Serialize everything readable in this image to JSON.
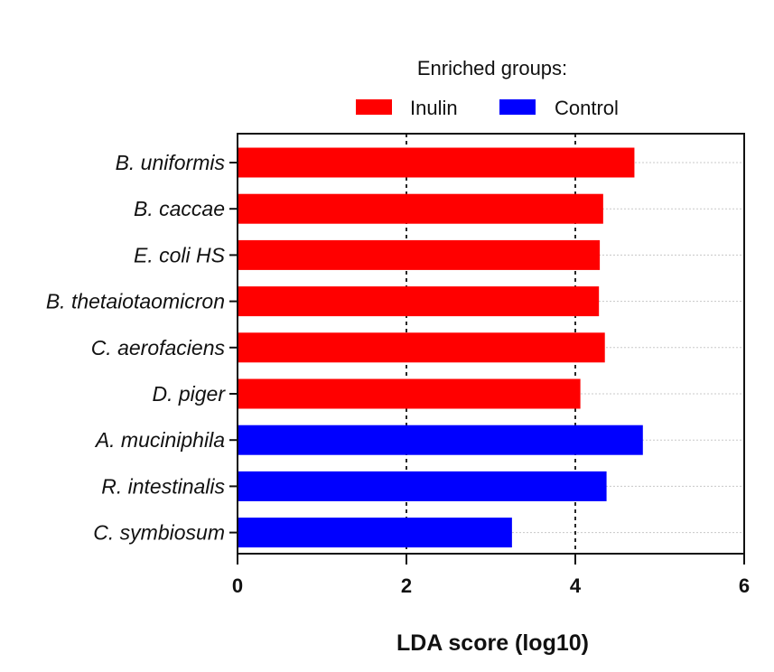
{
  "chart_data": {
    "type": "bar",
    "orientation": "horizontal",
    "legend_title": "Enriched groups:",
    "legend": [
      {
        "name": "Inulin",
        "color": "#ff0000"
      },
      {
        "name": "Control",
        "color": "#0000ff"
      }
    ],
    "categories": [
      "B. uniformis",
      "B. caccae",
      "E. coli HS",
      "B. thetaiotaomicron",
      "C. aerofaciens",
      "D. piger",
      "A. muciniphila",
      "R. intestinalis",
      "C. symbiosum"
    ],
    "values": [
      4.7,
      4.33,
      4.29,
      4.28,
      4.35,
      4.06,
      4.8,
      4.37,
      3.25
    ],
    "groups": [
      "Inulin",
      "Inulin",
      "Inulin",
      "Inulin",
      "Inulin",
      "Inulin",
      "Control",
      "Control",
      "Control"
    ],
    "xlabel": "LDA score (log10)",
    "ylabel": "",
    "xlim": [
      0,
      6
    ],
    "xticks": [
      "0",
      "2",
      "4",
      "6"
    ],
    "reference_lines": [
      2,
      4
    ],
    "grid": "horizontal dotted"
  }
}
